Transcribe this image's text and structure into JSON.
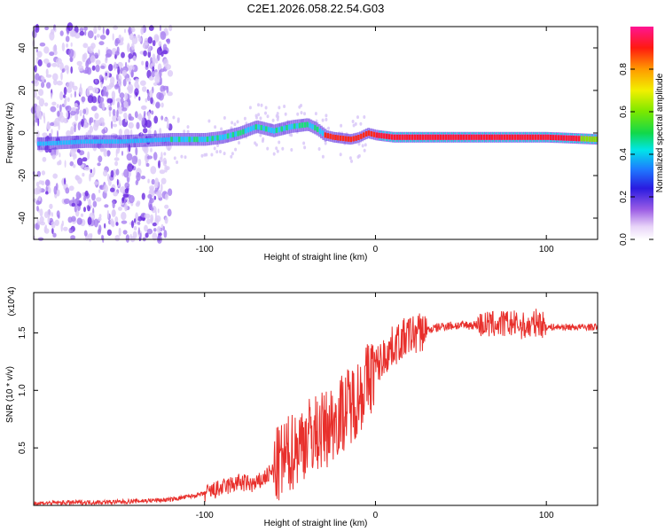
{
  "title": "C2E1.2026.058.22.54.G03",
  "chart_data": [
    {
      "type": "heatmap",
      "name": "spectrogram",
      "xlabel": "Height of straight line (km)",
      "ylabel": "Frequency (Hz)",
      "xlim": [
        -200,
        130
      ],
      "ylim": [
        -50,
        50
      ],
      "xticks": [
        -100,
        0,
        100
      ],
      "yticks": [
        -40,
        -20,
        0,
        20,
        40
      ],
      "colorbar": {
        "label": "Normalized spectral amplitude",
        "range": [
          0,
          1
        ],
        "ticks": [
          "0.0",
          "0.2",
          "0.4",
          "0.6",
          "0.8"
        ]
      },
      "ridge": {
        "x": [
          -195,
          -170,
          -150,
          -120,
          -100,
          -90,
          -80,
          -70,
          -60,
          -50,
          -40,
          -35,
          -30,
          -25,
          -15,
          -10,
          -5,
          0,
          10,
          40,
          80,
          100,
          130
        ],
        "frequency": [
          -5,
          -4,
          -4,
          -3,
          -3,
          -2,
          0,
          3,
          1,
          3,
          4,
          2,
          -1,
          -2,
          -3,
          -2,
          0,
          -1,
          -2,
          -2,
          -2,
          -2,
          -3
        ]
      }
    },
    {
      "type": "line",
      "name": "snr",
      "xlabel": "Height of straight line (km)",
      "ylabel": "SNR (10 * v/v)",
      "scale_note": "(x10^4)",
      "xlim": [
        -200,
        130
      ],
      "ylim": [
        0,
        1.85
      ],
      "xticks": [
        -100,
        0,
        100
      ],
      "yticks": [
        0.5,
        1.0,
        1.5
      ],
      "series": [
        {
          "name": "SNR",
          "color": "#e8302c",
          "x": [
            -200,
            -150,
            -120,
            -100,
            -90,
            -80,
            -70,
            -60,
            -50,
            -40,
            -30,
            -20,
            -10,
            0,
            10,
            20,
            30,
            40,
            60,
            80,
            90,
            95,
            100,
            110,
            130
          ],
          "y": [
            0.02,
            0.03,
            0.05,
            0.1,
            0.15,
            0.2,
            0.18,
            0.3,
            0.45,
            0.6,
            0.65,
            0.8,
            0.95,
            1.2,
            1.38,
            1.48,
            1.52,
            1.56,
            1.57,
            1.58,
            1.55,
            1.6,
            1.55,
            1.55,
            1.55
          ]
        }
      ]
    }
  ]
}
